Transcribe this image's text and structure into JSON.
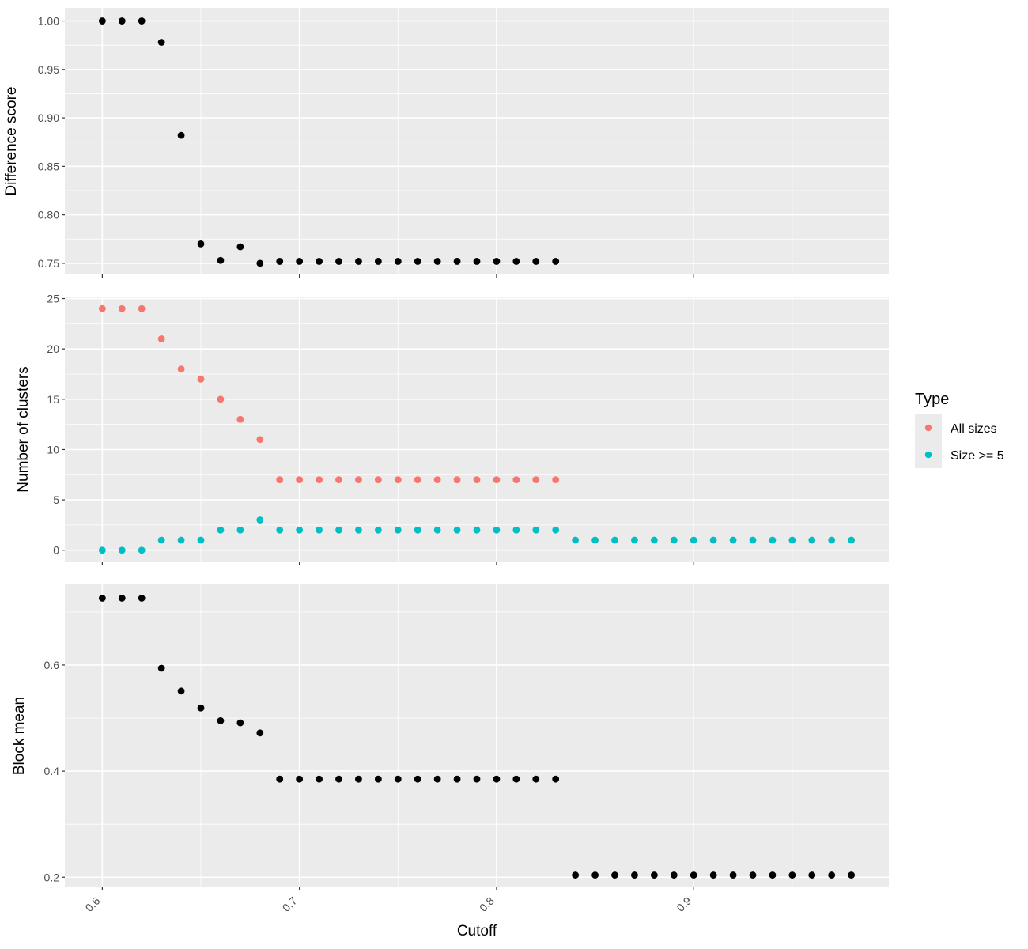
{
  "chart_data": [
    {
      "type": "scatter",
      "panel": "top",
      "ylabel": "Difference score",
      "xlabel": "",
      "xlim": [
        0.581,
        0.999
      ],
      "ylim": [
        0.7385,
        1.0135
      ],
      "y_ticks": [
        0.75,
        0.8,
        0.85,
        0.9,
        0.95,
        1.0
      ],
      "y_tick_labels": [
        "0.75",
        "0.80",
        "0.85",
        "0.90",
        "0.95",
        "1.00"
      ],
      "x_ticks": [
        0.6,
        0.7,
        0.8,
        0.9
      ],
      "grid": true,
      "series": [
        {
          "color": "#000000",
          "x": [
            0.6,
            0.61,
            0.62,
            0.63,
            0.64,
            0.65,
            0.66,
            0.67,
            0.68,
            0.69,
            0.7,
            0.71,
            0.72,
            0.73,
            0.74,
            0.75,
            0.76,
            0.77,
            0.78,
            0.79,
            0.8,
            0.81,
            0.82,
            0.83
          ],
          "y": [
            1.0,
            1.0,
            1.0,
            0.978,
            0.882,
            0.77,
            0.753,
            0.767,
            0.75,
            0.752,
            0.752,
            0.752,
            0.752,
            0.752,
            0.752,
            0.752,
            0.752,
            0.752,
            0.752,
            0.752,
            0.752,
            0.752,
            0.752,
            0.752
          ]
        }
      ]
    },
    {
      "type": "scatter",
      "panel": "middle",
      "ylabel": "Number of clusters",
      "xlabel": "",
      "xlim": [
        0.581,
        0.999
      ],
      "ylim": [
        -1.2,
        25.2
      ],
      "y_ticks": [
        0,
        5,
        10,
        15,
        20,
        25
      ],
      "y_tick_labels": [
        "0",
        "5",
        "10",
        "15",
        "20",
        "25"
      ],
      "x_ticks": [
        0.6,
        0.7,
        0.8,
        0.9
      ],
      "grid": true,
      "legend_title": "Type",
      "legend_position": "right",
      "series": [
        {
          "name": "All sizes",
          "color": "#F8766D",
          "x": [
            0.6,
            0.61,
            0.62,
            0.63,
            0.64,
            0.65,
            0.66,
            0.67,
            0.68,
            0.69,
            0.7,
            0.71,
            0.72,
            0.73,
            0.74,
            0.75,
            0.76,
            0.77,
            0.78,
            0.79,
            0.8,
            0.81,
            0.82,
            0.83
          ],
          "y": [
            24,
            24,
            24,
            21,
            18,
            17,
            15,
            13,
            11,
            7,
            7,
            7,
            7,
            7,
            7,
            7,
            7,
            7,
            7,
            7,
            7,
            7,
            7,
            7
          ]
        },
        {
          "name": "Size >= 5",
          "color": "#00BFC4",
          "x": [
            0.6,
            0.61,
            0.62,
            0.63,
            0.64,
            0.65,
            0.66,
            0.67,
            0.68,
            0.69,
            0.7,
            0.71,
            0.72,
            0.73,
            0.74,
            0.75,
            0.76,
            0.77,
            0.78,
            0.79,
            0.8,
            0.81,
            0.82,
            0.83,
            0.84,
            0.85,
            0.86,
            0.87,
            0.88,
            0.89,
            0.9,
            0.91,
            0.92,
            0.93,
            0.94,
            0.95,
            0.96,
            0.97,
            0.98
          ],
          "y": [
            0,
            0,
            0,
            1,
            1,
            1,
            2,
            2,
            3,
            2,
            2,
            2,
            2,
            2,
            2,
            2,
            2,
            2,
            2,
            2,
            2,
            2,
            2,
            2,
            1,
            1,
            1,
            1,
            1,
            1,
            1,
            1,
            1,
            1,
            1,
            1,
            1,
            1,
            1
          ]
        }
      ]
    },
    {
      "type": "scatter",
      "panel": "bottom",
      "ylabel": "Block mean",
      "xlabel": "Cutoff",
      "xlim": [
        0.581,
        0.999
      ],
      "ylim": [
        0.181,
        0.752
      ],
      "y_ticks": [
        0.2,
        0.4,
        0.6
      ],
      "y_tick_labels": [
        "0.2",
        "0.4",
        "0.6"
      ],
      "x_ticks": [
        0.6,
        0.7,
        0.8,
        0.9
      ],
      "x_tick_labels": [
        "0.6",
        "0.7",
        "0.8",
        "0.9"
      ],
      "grid": true,
      "series": [
        {
          "color": "#000000",
          "x": [
            0.6,
            0.61,
            0.62,
            0.63,
            0.64,
            0.65,
            0.66,
            0.67,
            0.68,
            0.69,
            0.7,
            0.71,
            0.72,
            0.73,
            0.74,
            0.75,
            0.76,
            0.77,
            0.78,
            0.79,
            0.8,
            0.81,
            0.82,
            0.83,
            0.84,
            0.85,
            0.86,
            0.87,
            0.88,
            0.89,
            0.9,
            0.91,
            0.92,
            0.93,
            0.94,
            0.95,
            0.96,
            0.97,
            0.98
          ],
          "y": [
            0.726,
            0.726,
            0.726,
            0.594,
            0.551,
            0.519,
            0.495,
            0.491,
            0.472,
            0.385,
            0.385,
            0.385,
            0.385,
            0.385,
            0.385,
            0.385,
            0.385,
            0.385,
            0.385,
            0.385,
            0.385,
            0.385,
            0.385,
            0.385,
            0.204,
            0.204,
            0.204,
            0.204,
            0.204,
            0.204,
            0.204,
            0.204,
            0.204,
            0.204,
            0.204,
            0.204,
            0.204,
            0.204,
            0.204
          ]
        }
      ]
    }
  ]
}
